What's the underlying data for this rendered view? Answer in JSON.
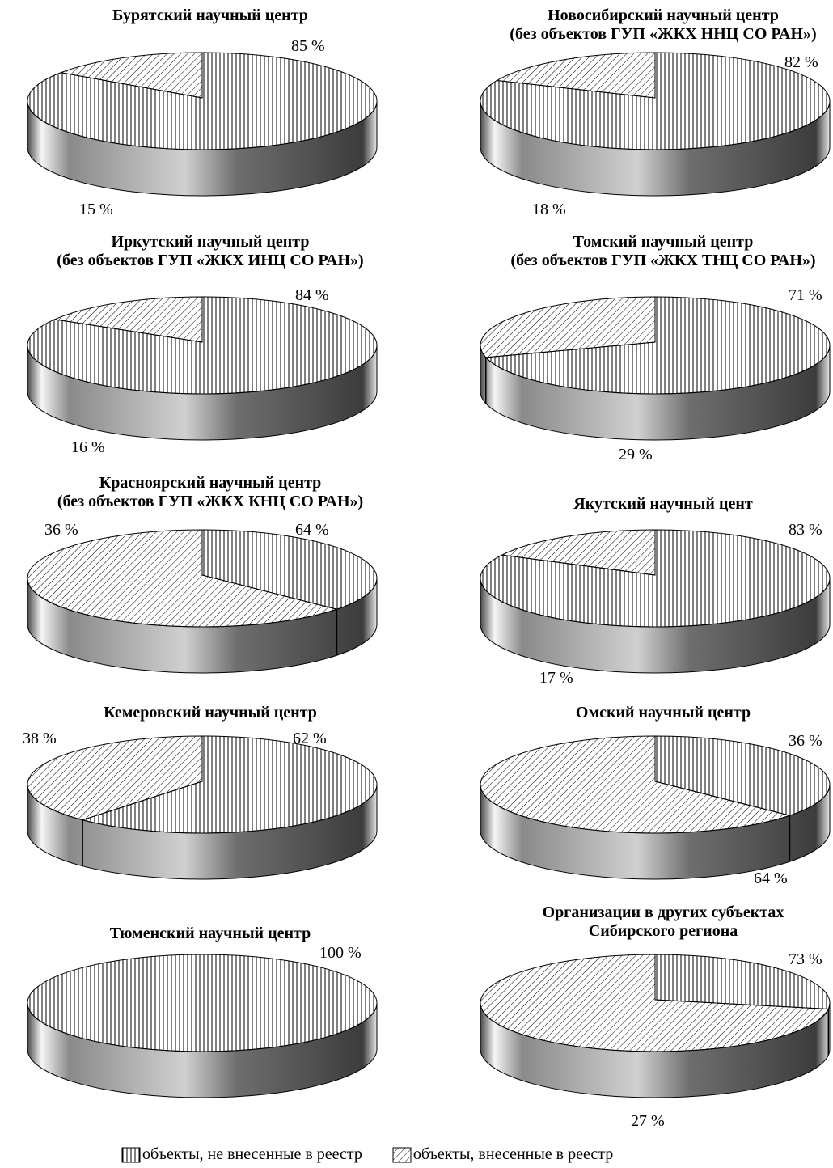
{
  "legend": {
    "unregistered": "объекты, не внесенные в реестр",
    "registered": "объекты, внесенные в реестр"
  },
  "colors": {
    "rim_dark": "#3c3c3c",
    "rim_light": "#f4f4f4",
    "outline": "#000000",
    "top": "#ffffff"
  },
  "chart_data": [
    {
      "type": "pie",
      "title": "Бурятский научный центр",
      "series": [
        {
          "name": "объекты, не внесенные в реестр",
          "value": 85,
          "label": "85 %"
        },
        {
          "name": "объекты, внесенные в реестр",
          "value": 15,
          "label": "15 %"
        }
      ]
    },
    {
      "type": "pie",
      "title": "Новосибирский научный центр\n(без объектов ГУП «ЖКХ ННЦ СО РАН»)",
      "series": [
        {
          "name": "объекты, не внесенные в реестр",
          "value": 82,
          "label": "82 %"
        },
        {
          "name": "объекты, внесенные в реестр",
          "value": 18,
          "label": "18 %"
        }
      ]
    },
    {
      "type": "pie",
      "title": "Иркутский научный центр\n(без объектов ГУП «ЖКХ ИНЦ СО РАН»)",
      "series": [
        {
          "name": "объекты, не внесенные в реестр",
          "value": 84,
          "label": "84 %"
        },
        {
          "name": "объекты, внесенные в реестр",
          "value": 16,
          "label": "16 %"
        }
      ]
    },
    {
      "type": "pie",
      "title": "Томский научный центр\n(без объектов ГУП «ЖКХ ТНЦ СО РАН»)",
      "series": [
        {
          "name": "объекты, не внесенные в реестр",
          "value": 71,
          "label": "71 %"
        },
        {
          "name": "объекты, внесенные в реестр",
          "value": 29,
          "label": "29 %"
        }
      ]
    },
    {
      "type": "pie",
      "title": "Красноярский научный центр\n(без объектов ГУП «ЖКХ КНЦ СО РАН»)",
      "series": [
        {
          "name": "объекты, не внесенные в реестр",
          "value": 36,
          "label": "36 %"
        },
        {
          "name": "объекты, внесенные в реестр",
          "value": 64,
          "label": "64 %"
        }
      ]
    },
    {
      "type": "pie",
      "title": "Якутский научный цент",
      "series": [
        {
          "name": "объекты, не внесенные в реестр",
          "value": 83,
          "label": "83 %"
        },
        {
          "name": "объекты, внесенные в реестр",
          "value": 17,
          "label": "17 %"
        }
      ]
    },
    {
      "type": "pie",
      "title": "Кемеровский научный центр",
      "series": [
        {
          "name": "объекты, не внесенные в реестр",
          "value": 62,
          "label": "62 %"
        },
        {
          "name": "объекты, внесенные в реестр",
          "value": 38,
          "label": "38 %"
        }
      ]
    },
    {
      "type": "pie",
      "title": "Омский научный центр",
      "series": [
        {
          "name": "объекты, не внесенные в реестр",
          "value": 36,
          "label": "36 %"
        },
        {
          "name": "объекты, внесенные в реестр",
          "value": 64,
          "label": "64 %"
        }
      ]
    },
    {
      "type": "pie",
      "title": "Тюменский научный центр",
      "series": [
        {
          "name": "объекты, не внесенные в реестр",
          "value": 100,
          "label": "100 %"
        }
      ]
    },
    {
      "type": "pie",
      "title": "Организации в других субъектах\nСибирского региона",
      "series": [
        {
          "name": "объекты, не внесенные в реестр",
          "value": 27,
          "label": "27 %"
        },
        {
          "name": "объекты, внесенные в реестр",
          "value": 73,
          "label": "73 %"
        }
      ]
    }
  ]
}
